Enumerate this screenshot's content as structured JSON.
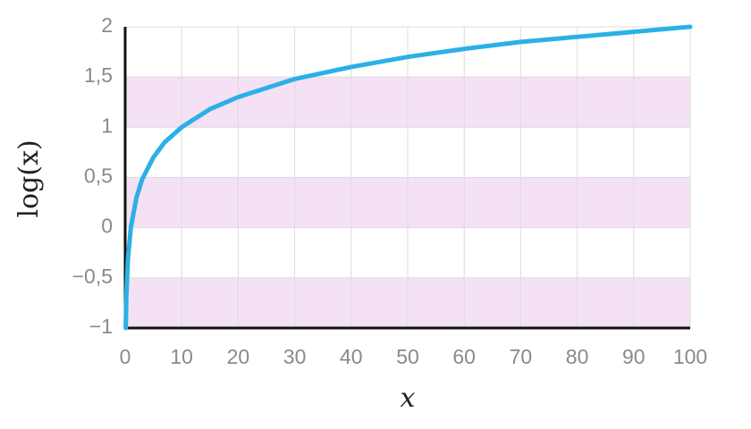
{
  "chart_data": {
    "type": "line",
    "xlabel": "x",
    "ylabel": "log(x)",
    "x": [
      0.1,
      0.2,
      0.5,
      1,
      2,
      3,
      5,
      7,
      10,
      15,
      20,
      30,
      40,
      50,
      60,
      70,
      80,
      90,
      100
    ],
    "values": [
      -1,
      -0.7,
      -0.3,
      0,
      0.3,
      0.48,
      0.7,
      0.85,
      1,
      1.18,
      1.3,
      1.48,
      1.6,
      1.7,
      1.78,
      1.85,
      1.9,
      1.95,
      2
    ],
    "color": "#2bb0e6",
    "xlim": [
      0,
      100
    ],
    "xticks": [
      0,
      10,
      20,
      30,
      40,
      50,
      60,
      70,
      80,
      90,
      100
    ],
    "ylim": [
      -1,
      2
    ],
    "yticks": [
      {
        "value": -1,
        "label": "−1"
      },
      {
        "value": -0.5,
        "label": "−0,5"
      },
      0,
      {
        "value": 0.5,
        "label": "0,5"
      },
      1,
      {
        "value": 1.5,
        "label": "1,5"
      },
      2
    ],
    "grid": true,
    "band_color": "#f5e1f5"
  }
}
